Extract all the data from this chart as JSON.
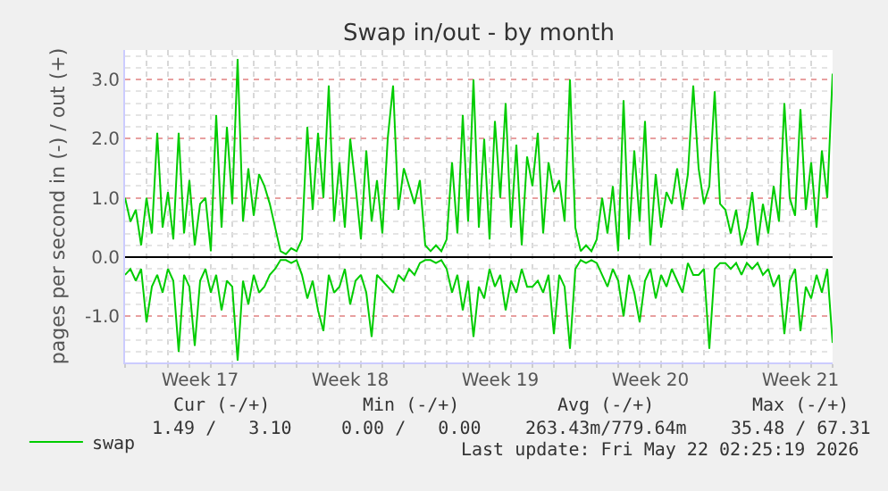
{
  "chart_data": {
    "type": "line",
    "title": "Swap in/out - by month",
    "ylabel": "pages per second in (-) / out (+)",
    "x": [
      "2026-04-20T00:00",
      "2026-04-20T06:00",
      "2026-04-20T12:00",
      "2026-04-20T18:00",
      "2026-04-21T00:00",
      "2026-04-21T06:00",
      "2026-04-21T12:00",
      "2026-04-21T18:00",
      "2026-04-22T00:00",
      "2026-04-22T06:00",
      "2026-04-22T12:00",
      "2026-04-22T18:00",
      "2026-04-23T00:00",
      "2026-04-23T06:00",
      "2026-04-23T12:00",
      "2026-04-23T18:00",
      "2026-04-24T00:00",
      "2026-04-24T06:00",
      "2026-04-24T12:00",
      "2026-04-24T18:00",
      "2026-04-25T00:00",
      "2026-04-25T06:00",
      "2026-04-25T12:00",
      "2026-04-25T18:00",
      "2026-04-26T00:00",
      "2026-04-26T06:00",
      "2026-04-26T12:00",
      "2026-04-26T18:00",
      "2026-04-27T00:00",
      "2026-04-27T06:00",
      "2026-04-27T12:00",
      "2026-04-27T18:00",
      "2026-04-28T00:00",
      "2026-04-28T06:00",
      "2026-04-28T12:00",
      "2026-04-28T18:00",
      "2026-04-29T00:00",
      "2026-04-29T06:00",
      "2026-04-29T12:00",
      "2026-04-29T18:00",
      "2026-04-30T00:00",
      "2026-04-30T06:00",
      "2026-04-30T12:00",
      "2026-04-30T18:00",
      "2026-05-01T00:00",
      "2026-05-01T06:00",
      "2026-05-01T12:00",
      "2026-05-01T18:00",
      "2026-05-02T00:00",
      "2026-05-02T06:00",
      "2026-05-02T12:00",
      "2026-05-02T18:00",
      "2026-05-03T00:00",
      "2026-05-03T06:00",
      "2026-05-03T12:00",
      "2026-05-03T18:00",
      "2026-05-04T00:00",
      "2026-05-04T06:00",
      "2026-05-04T12:00",
      "2026-05-04T18:00",
      "2026-05-05T00:00",
      "2026-05-05T06:00",
      "2026-05-05T12:00",
      "2026-05-05T18:00",
      "2026-05-06T00:00",
      "2026-05-06T06:00",
      "2026-05-06T12:00",
      "2026-05-06T18:00",
      "2026-05-07T00:00",
      "2026-05-07T06:00",
      "2026-05-07T12:00",
      "2026-05-07T18:00",
      "2026-05-08T00:00",
      "2026-05-08T06:00",
      "2026-05-08T12:00",
      "2026-05-08T18:00",
      "2026-05-09T00:00",
      "2026-05-09T06:00",
      "2026-05-09T12:00",
      "2026-05-09T18:00",
      "2026-05-10T00:00",
      "2026-05-10T06:00",
      "2026-05-10T12:00",
      "2026-05-10T18:00",
      "2026-05-11T00:00",
      "2026-05-11T06:00",
      "2026-05-11T12:00",
      "2026-05-11T18:00",
      "2026-05-12T00:00",
      "2026-05-12T06:00",
      "2026-05-12T12:00",
      "2026-05-12T18:00",
      "2026-05-13T00:00",
      "2026-05-13T06:00",
      "2026-05-13T12:00",
      "2026-05-13T18:00",
      "2026-05-14T00:00",
      "2026-05-14T06:00",
      "2026-05-14T12:00",
      "2026-05-14T18:00",
      "2026-05-15T00:00",
      "2026-05-15T06:00",
      "2026-05-15T12:00",
      "2026-05-15T18:00",
      "2026-05-16T00:00",
      "2026-05-16T06:00",
      "2026-05-16T12:00",
      "2026-05-16T18:00",
      "2026-05-17T00:00",
      "2026-05-17T06:00",
      "2026-05-17T12:00",
      "2026-05-17T18:00",
      "2026-05-18T00:00",
      "2026-05-18T06:00",
      "2026-05-18T12:00",
      "2026-05-18T18:00",
      "2026-05-19T00:00",
      "2026-05-19T06:00",
      "2026-05-19T12:00",
      "2026-05-19T18:00",
      "2026-05-20T00:00",
      "2026-05-20T06:00",
      "2026-05-20T12:00",
      "2026-05-20T18:00",
      "2026-05-21T00:00",
      "2026-05-21T06:00",
      "2026-05-21T12:00",
      "2026-05-21T18:00",
      "2026-05-22T00:00",
      "2026-05-22T06:00",
      "2026-05-22T12:00",
      "2026-05-22T18:00",
      "2026-05-23T00:00"
    ],
    "series": [
      {
        "name": "swap",
        "color": "#00cc00",
        "values": [
          1.0,
          0.6,
          0.8,
          0.2,
          1.0,
          0.4,
          2.1,
          0.5,
          1.1,
          0.3,
          2.1,
          0.4,
          1.3,
          0.2,
          0.9,
          1.0,
          0.1,
          2.4,
          0.5,
          2.2,
          0.9,
          3.35,
          0.6,
          1.5,
          0.7,
          1.4,
          1.2,
          0.9,
          0.5,
          0.1,
          0.05,
          0.15,
          0.1,
          0.3,
          2.2,
          0.8,
          2.1,
          1.0,
          2.9,
          0.6,
          1.6,
          0.5,
          2.0,
          1.2,
          0.3,
          1.8,
          0.6,
          1.3,
          0.4,
          2.0,
          2.9,
          0.8,
          1.5,
          1.2,
          0.9,
          1.3,
          0.2,
          0.1,
          0.2,
          0.1,
          0.3,
          1.6,
          0.4,
          2.4,
          0.6,
          3.0,
          0.5,
          2.0,
          0.3,
          2.3,
          1.0,
          2.6,
          0.5,
          1.9,
          0.2,
          1.7,
          1.2,
          2.1,
          0.4,
          1.6,
          1.1,
          1.3,
          0.6,
          3.0,
          0.5,
          0.1,
          0.2,
          0.1,
          0.3,
          1.0,
          0.4,
          1.2,
          0.1,
          2.65,
          0.3,
          1.8,
          0.6,
          2.3,
          0.2,
          1.4,
          0.5,
          1.1,
          0.9,
          1.5,
          0.8,
          1.4,
          2.9,
          1.5,
          0.9,
          1.2,
          2.8,
          0.9,
          0.8,
          0.4,
          0.8,
          0.2,
          0.5,
          1.1,
          0.2,
          0.9,
          0.4,
          1.2,
          0.6,
          2.6,
          1.0,
          0.7,
          2.5,
          0.8,
          1.6,
          0.5,
          1.8,
          1.0,
          3.1
        ]
      },
      {
        "color": "#00cc00",
        "values": [
          -0.3,
          -0.2,
          -0.4,
          -0.2,
          -1.1,
          -0.5,
          -0.3,
          -0.6,
          -0.2,
          -0.4,
          -1.6,
          -0.3,
          -0.5,
          -1.5,
          -0.4,
          -0.2,
          -0.6,
          -0.3,
          -0.9,
          -0.4,
          -0.5,
          -1.75,
          -0.4,
          -0.8,
          -0.3,
          -0.6,
          -0.5,
          -0.3,
          -0.2,
          -0.05,
          -0.05,
          -0.1,
          -0.05,
          -0.3,
          -0.7,
          -0.4,
          -0.9,
          -1.25,
          -0.3,
          -0.6,
          -0.5,
          -0.2,
          -0.8,
          -0.4,
          -0.3,
          -0.6,
          -1.35,
          -0.3,
          -0.4,
          -0.5,
          -0.6,
          -0.3,
          -0.4,
          -0.2,
          -0.3,
          -0.1,
          -0.05,
          -0.05,
          -0.1,
          -0.05,
          -0.2,
          -0.6,
          -0.3,
          -0.9,
          -0.4,
          -1.35,
          -0.5,
          -0.7,
          -0.2,
          -0.5,
          -0.3,
          -0.9,
          -0.4,
          -0.6,
          -0.2,
          -0.5,
          -0.5,
          -0.4,
          -0.6,
          -0.3,
          -1.3,
          -0.3,
          -0.5,
          -1.55,
          -0.2,
          -0.05,
          -0.1,
          -0.05,
          -0.1,
          -0.3,
          -0.5,
          -0.2,
          -0.4,
          -1.0,
          -0.3,
          -0.6,
          -1.1,
          -0.4,
          -0.2,
          -0.7,
          -0.3,
          -0.5,
          -0.2,
          -0.4,
          -0.6,
          -0.1,
          -0.3,
          -0.3,
          -0.2,
          -1.55,
          -0.2,
          -0.1,
          -0.1,
          -0.2,
          -0.1,
          -0.3,
          -0.1,
          -0.2,
          -0.1,
          -0.3,
          -0.2,
          -0.5,
          -0.3,
          -1.3,
          -0.4,
          -0.2,
          -1.25,
          -0.5,
          -0.7,
          -0.3,
          -0.6,
          -0.2,
          -1.45
        ]
      }
    ],
    "xlim": [
      "2026-04-20T00:00",
      "2026-05-23T00:00"
    ],
    "xticks": [
      {
        "value": "2026-04-23T12:00",
        "label": "Week 17"
      },
      {
        "value": "2026-04-30T12:00",
        "label": "Week 18"
      },
      {
        "value": "2026-05-07T12:00",
        "label": "Week 19"
      },
      {
        "value": "2026-05-14T12:00",
        "label": "Week 20"
      },
      {
        "value": "2026-05-21T12:00",
        "label": "Week 21"
      }
    ],
    "ylim": [
      -1.78,
      3.5
    ],
    "yticks": [
      {
        "value": -1,
        "label": "-1.0"
      },
      {
        "value": 0,
        "label": "0.0"
      },
      {
        "value": 1,
        "label": "1.0"
      },
      {
        "value": 2,
        "label": "2.0"
      },
      {
        "value": 3,
        "label": "3.0"
      }
    ],
    "grid": true,
    "legend": "bottom left",
    "marker": "none",
    "line_style": "solid",
    "annotations": [
      "Cur (-/+)",
      "Min (-/+)",
      "Avg (-/+)",
      "Max (-/+)",
      "1.49 /   3.10",
      "0.00 /   0.00",
      "263.43m/779.64m",
      "35.48 / 67.31",
      "Last update: Fri May 22 02:25:19 2026"
    ]
  }
}
